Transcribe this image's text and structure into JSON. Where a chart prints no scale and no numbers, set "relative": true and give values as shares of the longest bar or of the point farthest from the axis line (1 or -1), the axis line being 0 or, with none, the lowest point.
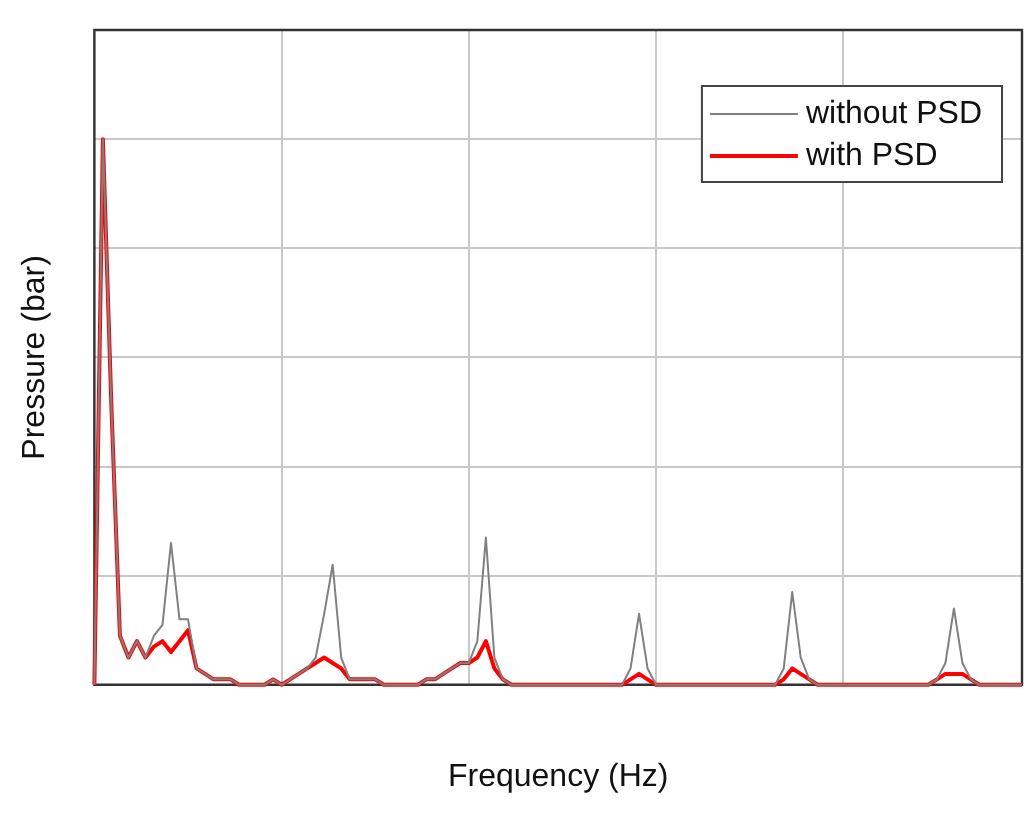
{
  "chart_data": {
    "type": "line",
    "relative": true,
    "xlabel": "Frequency (Hz)",
    "ylabel": "Pressure (bar)",
    "grid": true,
    "legend": "top right",
    "marker": "none",
    "line_style": "solid",
    "categories": [
      null,
      null,
      null,
      null,
      null,
      null,
      null,
      null,
      null,
      null,
      null,
      null,
      null,
      null,
      null,
      null,
      null,
      null,
      null,
      null,
      null,
      null,
      null,
      null,
      null,
      null,
      null,
      null,
      null,
      null,
      null,
      null,
      null,
      null,
      null,
      null,
      null,
      null,
      null,
      null,
      null,
      null,
      null,
      null,
      null,
      null,
      null,
      null,
      null,
      null,
      null,
      null,
      null,
      null,
      null,
      null,
      null,
      null,
      null,
      null,
      null,
      null,
      null,
      null,
      null,
      null,
      null,
      null,
      null,
      null,
      null,
      null,
      null,
      null,
      null,
      null,
      null,
      null,
      null,
      null,
      null,
      null,
      null,
      null,
      null,
      null,
      null,
      null,
      null,
      null,
      null,
      null,
      null,
      null,
      null,
      null,
      null,
      null,
      null,
      null,
      null,
      null,
      null,
      null,
      null,
      null,
      null,
      null,
      null,
      null
    ],
    "series": [
      {
        "name": "without PSD",
        "color": "#808080",
        "values": [
          0,
          1,
          0.51,
          0.09,
          0.05,
          0.08,
          0.05,
          0.09,
          0.11,
          0.26,
          0.12,
          0.12,
          0.03,
          0.02,
          0.01,
          0.01,
          0.01,
          0,
          0,
          0,
          0,
          0.01,
          0,
          0.01,
          0.02,
          0.03,
          0.05,
          0.13,
          0.22,
          0.05,
          0.01,
          0.01,
          0.01,
          0.01,
          0,
          0,
          0,
          0,
          0,
          0.01,
          0.01,
          0.02,
          0.03,
          0.04,
          0.04,
          0.08,
          0.27,
          0.05,
          0.01,
          0,
          0,
          0,
          0,
          0,
          0,
          0,
          0,
          0,
          0,
          0,
          0,
          0,
          0,
          0.03,
          0.13,
          0.03,
          0,
          0,
          0,
          0,
          0,
          0,
          0,
          0,
          0,
          0,
          0,
          0,
          0,
          0,
          0,
          0.03,
          0.17,
          0.05,
          0.01,
          0,
          0,
          0,
          0,
          0,
          0,
          0,
          0,
          0,
          0,
          0,
          0,
          0,
          0,
          0.01,
          0.04,
          0.14,
          0.04,
          0.01,
          0,
          0,
          0,
          0,
          0,
          0
        ]
      },
      {
        "name": "with PSD",
        "color": "#ff0000",
        "values": [
          0,
          1,
          0.51,
          0.09,
          0.05,
          0.08,
          0.05,
          0.07,
          0.08,
          0.06,
          0.08,
          0.1,
          0.03,
          0.02,
          0.01,
          0.01,
          0.01,
          0,
          0,
          0,
          0,
          0.01,
          0,
          0.01,
          0.02,
          0.03,
          0.04,
          0.05,
          0.04,
          0.03,
          0.01,
          0.01,
          0.01,
          0.01,
          0,
          0,
          0,
          0,
          0,
          0.01,
          0.01,
          0.02,
          0.03,
          0.04,
          0.04,
          0.05,
          0.08,
          0.03,
          0.01,
          0,
          0,
          0,
          0,
          0,
          0,
          0,
          0,
          0,
          0,
          0,
          0,
          0,
          0,
          0.01,
          0.02,
          0.01,
          0,
          0,
          0,
          0,
          0,
          0,
          0,
          0,
          0,
          0,
          0,
          0,
          0,
          0,
          0,
          0.01,
          0.03,
          0.02,
          0.01,
          0,
          0,
          0,
          0,
          0,
          0,
          0,
          0,
          0,
          0,
          0,
          0,
          0,
          0,
          0.01,
          0.02,
          0.02,
          0.02,
          0.01,
          0,
          0,
          0,
          0,
          0,
          0
        ]
      }
    ]
  }
}
